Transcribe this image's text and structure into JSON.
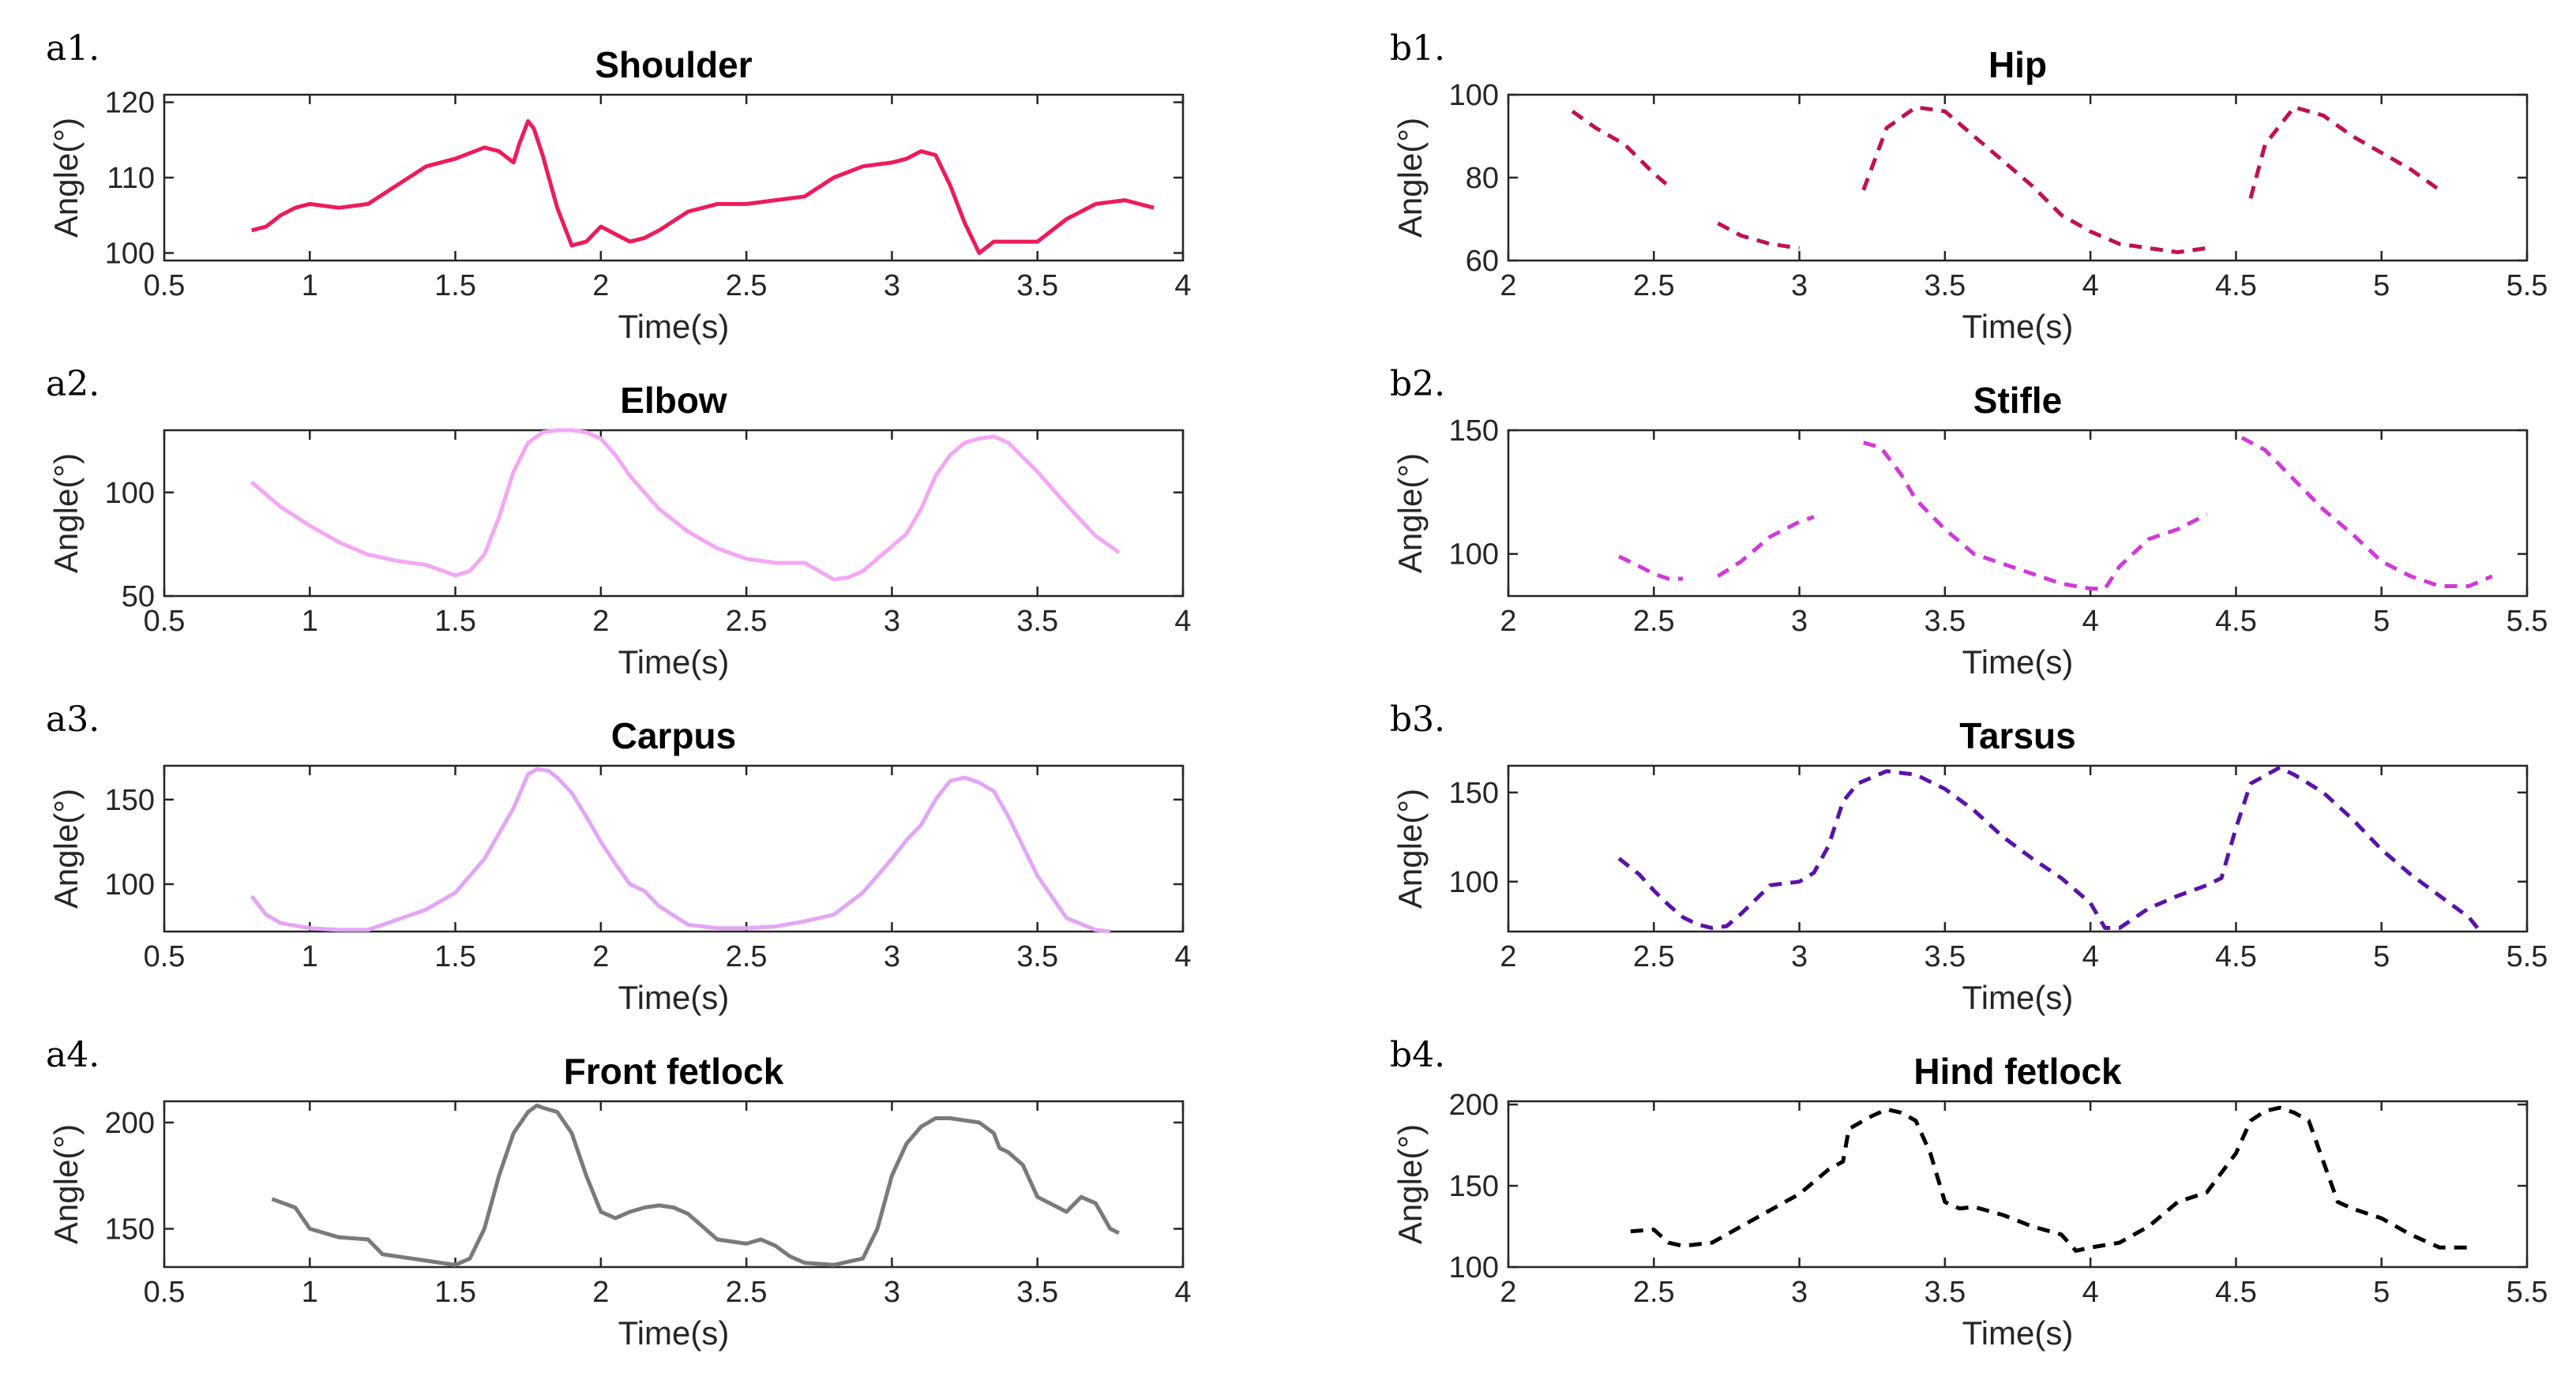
{
  "chart_data": [
    {
      "id": "a1",
      "panel_label": "a1.",
      "type": "line",
      "title": "Shoulder",
      "xlabel": "Time(s)",
      "ylabel": "Angle(°)",
      "xlim": [
        0.5,
        4
      ],
      "ylim": [
        99,
        121
      ],
      "xticks": [
        "0.5",
        "1",
        "1.5",
        "2",
        "2.5",
        "3",
        "3.5",
        "4"
      ],
      "yticks": [
        "100",
        "110",
        "120"
      ],
      "series": [
        {
          "name": "Shoulder",
          "color": "#ee1b5b",
          "style": "solid",
          "x": [
            0.8,
            0.85,
            0.9,
            0.95,
            1.0,
            1.1,
            1.2,
            1.3,
            1.4,
            1.5,
            1.6,
            1.65,
            1.7,
            1.72,
            1.75,
            1.77,
            1.8,
            1.85,
            1.9,
            1.95,
            2.0,
            2.05,
            2.1,
            2.15,
            2.2,
            2.3,
            2.4,
            2.5,
            2.6,
            2.7,
            2.8,
            2.9,
            3.0,
            3.05,
            3.1,
            3.15,
            3.2,
            3.25,
            3.3,
            3.35,
            3.4,
            3.5,
            3.6,
            3.7,
            3.8,
            3.9
          ],
          "y": [
            103,
            103.5,
            105,
            106,
            106.5,
            106,
            106.5,
            109,
            111.5,
            112.5,
            114,
            113.5,
            112,
            114.5,
            117.5,
            116.5,
            113,
            106,
            101,
            101.5,
            103.5,
            102.5,
            101.5,
            102,
            103,
            105.5,
            106.5,
            106.5,
            107,
            107.5,
            110,
            111.5,
            112,
            112.5,
            113.5,
            113,
            109,
            104,
            100,
            101.5,
            101.5,
            101.5,
            104.5,
            106.5,
            107,
            106
          ]
        }
      ]
    },
    {
      "id": "a2",
      "panel_label": "a2.",
      "type": "line",
      "title": "Elbow",
      "xlabel": "Time(s)",
      "ylabel": "Angle(°)",
      "xlim": [
        0.5,
        4
      ],
      "ylim": [
        50,
        130
      ],
      "xticks": [
        "0.5",
        "1",
        "1.5",
        "2",
        "2.5",
        "3",
        "3.5",
        "4"
      ],
      "yticks": [
        "50",
        "100"
      ],
      "series": [
        {
          "name": "Elbow",
          "color": "#f4a7f4",
          "style": "solid",
          "x": [
            0.8,
            0.9,
            1.0,
            1.1,
            1.2,
            1.3,
            1.4,
            1.5,
            1.55,
            1.6,
            1.65,
            1.7,
            1.75,
            1.8,
            1.85,
            1.9,
            1.95,
            2.0,
            2.05,
            2.1,
            2.2,
            2.3,
            2.4,
            2.5,
            2.6,
            2.7,
            2.8,
            2.85,
            2.9,
            3.0,
            3.05,
            3.1,
            3.15,
            3.2,
            3.25,
            3.3,
            3.35,
            3.4,
            3.5,
            3.6,
            3.7,
            3.78
          ],
          "y": [
            105,
            93,
            84,
            76,
            70,
            67,
            65,
            60,
            62,
            70,
            88,
            110,
            124,
            129,
            130,
            130,
            129,
            126,
            118,
            108,
            92,
            81,
            73,
            68,
            66,
            66,
            58,
            59,
            62,
            74,
            80,
            92,
            108,
            118,
            124,
            126,
            127,
            124,
            110,
            94,
            79,
            71
          ]
        }
      ]
    },
    {
      "id": "a3",
      "panel_label": "a3.",
      "type": "line",
      "title": "Carpus",
      "xlabel": "Time(s)",
      "ylabel": "Angle(°)",
      "xlim": [
        0.5,
        4
      ],
      "ylim": [
        72,
        170
      ],
      "xticks": [
        "0.5",
        "1",
        "1.5",
        "2",
        "2.5",
        "3",
        "3.5",
        "4"
      ],
      "yticks": [
        "100",
        "150"
      ],
      "series": [
        {
          "name": "Carpus",
          "color": "#e3a6f5",
          "style": "solid",
          "x": [
            0.8,
            0.85,
            0.9,
            1.0,
            1.1,
            1.2,
            1.3,
            1.4,
            1.5,
            1.6,
            1.65,
            1.7,
            1.75,
            1.78,
            1.82,
            1.85,
            1.9,
            1.95,
            2.0,
            2.05,
            2.1,
            2.15,
            2.2,
            2.3,
            2.4,
            2.5,
            2.6,
            2.7,
            2.8,
            2.9,
            3.0,
            3.05,
            3.1,
            3.15,
            3.2,
            3.25,
            3.3,
            3.35,
            3.4,
            3.5,
            3.6,
            3.7,
            3.75
          ],
          "y": [
            93,
            82,
            77,
            74,
            73,
            73,
            79,
            85,
            95,
            115,
            130,
            145,
            165,
            168,
            167,
            163,
            154,
            140,
            125,
            112,
            100,
            96,
            87,
            76,
            74,
            74,
            75,
            78,
            82,
            95,
            115,
            126,
            135,
            150,
            161,
            163,
            160,
            155,
            140,
            105,
            80,
            73,
            72
          ]
        }
      ]
    },
    {
      "id": "a4",
      "panel_label": "a4.",
      "type": "line",
      "title": "Front fetlock",
      "xlabel": "Time(s)",
      "ylabel": "Angle(°)",
      "xlim": [
        0.5,
        4
      ],
      "ylim": [
        132,
        210
      ],
      "xticks": [
        "0.5",
        "1",
        "1.5",
        "2",
        "2.5",
        "3",
        "3.5",
        "4"
      ],
      "yticks": [
        "150",
        "200"
      ],
      "series": [
        {
          "name": "Front fetlock",
          "color": "#7a7a7a",
          "style": "solid",
          "x": [
            0.87,
            0.95,
            1.0,
            1.05,
            1.1,
            1.2,
            1.25,
            1.3,
            1.4,
            1.5,
            1.55,
            1.6,
            1.65,
            1.7,
            1.75,
            1.78,
            1.8,
            1.85,
            1.9,
            1.95,
            2.0,
            2.05,
            2.1,
            2.15,
            2.2,
            2.25,
            2.3,
            2.4,
            2.5,
            2.55,
            2.6,
            2.65,
            2.7,
            2.8,
            2.9,
            2.95,
            3.0,
            3.05,
            3.1,
            3.15,
            3.2,
            3.3,
            3.35,
            3.37,
            3.4,
            3.45,
            3.5,
            3.6,
            3.65,
            3.7,
            3.75,
            3.78
          ],
          "y": [
            164,
            160,
            150,
            148,
            146,
            145,
            138,
            137,
            135,
            133,
            136,
            150,
            175,
            195,
            205,
            208,
            207,
            205,
            195,
            175,
            158,
            155,
            158,
            160,
            161,
            160,
            157,
            145,
            143,
            145,
            142,
            137,
            134,
            133,
            136,
            150,
            175,
            190,
            198,
            202,
            202,
            200,
            195,
            188,
            186,
            180,
            165,
            158,
            165,
            162,
            150,
            148
          ]
        }
      ]
    },
    {
      "id": "b1",
      "panel_label": "b1.",
      "type": "line",
      "title": "Hip",
      "xlabel": "Time(s)",
      "ylabel": "Angle(°)",
      "xlim": [
        2,
        5.5
      ],
      "ylim": [
        60,
        100
      ],
      "xticks": [
        "2",
        "2.5",
        "3",
        "3.5",
        "4",
        "4.5",
        "5",
        "5.5"
      ],
      "yticks": [
        "60",
        "80",
        "100"
      ],
      "series": [
        {
          "name": "Hip segment 1",
          "color": "#c0124a",
          "style": "dashed",
          "x": [
            2.22,
            2.3,
            2.4,
            2.5,
            2.55
          ],
          "y": [
            96,
            92,
            88,
            81,
            78
          ]
        },
        {
          "name": "Hip segment 2",
          "color": "#c0124a",
          "style": "dashed",
          "x": [
            2.72,
            2.8,
            2.9,
            3.0
          ],
          "y": [
            69,
            66,
            64,
            63
          ]
        },
        {
          "name": "Hip segment 3",
          "color": "#c0124a",
          "style": "dashed",
          "x": [
            3.22,
            3.3,
            3.4,
            3.5,
            3.6,
            3.7,
            3.8,
            3.9,
            4.0,
            4.1,
            4.2,
            4.3,
            4.4
          ],
          "y": [
            77,
            92,
            97,
            96,
            90,
            84,
            78,
            71,
            67,
            64,
            63,
            62,
            63
          ]
        },
        {
          "name": "Hip segment 4",
          "color": "#c0124a",
          "style": "dashed",
          "x": [
            4.55,
            4.6,
            4.7,
            4.8,
            4.9,
            5.0,
            5.1,
            5.2
          ],
          "y": [
            75,
            88,
            97,
            95,
            90,
            86,
            82,
            77
          ]
        }
      ]
    },
    {
      "id": "b2",
      "panel_label": "b2.",
      "type": "line",
      "title": "Stifle",
      "xlabel": "Time(s)",
      "ylabel": "Angle(°)",
      "xlim": [
        2,
        5.5
      ],
      "ylim": [
        83,
        150
      ],
      "xticks": [
        "2",
        "2.5",
        "3",
        "3.5",
        "4",
        "4.5",
        "5",
        "5.5"
      ],
      "yticks": [
        "100",
        "150"
      ],
      "series": [
        {
          "name": "Stifle segment 1",
          "color": "#d03ad8",
          "style": "dashed",
          "x": [
            2.38,
            2.45,
            2.5,
            2.55,
            2.6
          ],
          "y": [
            99,
            95,
            92,
            90,
            90
          ]
        },
        {
          "name": "Stifle segment 2",
          "color": "#d03ad8",
          "style": "dashed",
          "x": [
            2.72,
            2.8,
            2.9,
            3.0,
            3.05
          ],
          "y": [
            91,
            97,
            107,
            113,
            115
          ]
        },
        {
          "name": "Stifle segment 3",
          "color": "#d03ad8",
          "style": "dashed",
          "x": [
            3.22,
            3.28,
            3.35,
            3.4,
            3.5,
            3.6,
            3.7,
            3.8,
            3.9,
            4.0,
            4.05,
            4.1,
            4.2,
            4.3,
            4.4
          ],
          "y": [
            145,
            143,
            132,
            122,
            110,
            100,
            96,
            92,
            88,
            86,
            86,
            95,
            106,
            110,
            116
          ]
        },
        {
          "name": "Stifle segment 4",
          "color": "#d03ad8",
          "style": "dashed",
          "x": [
            4.52,
            4.6,
            4.7,
            4.8,
            4.9,
            5.0,
            5.1,
            5.2,
            5.3,
            5.38
          ],
          "y": [
            147,
            142,
            130,
            118,
            108,
            97,
            91,
            87,
            87,
            91
          ]
        }
      ]
    },
    {
      "id": "b3",
      "panel_label": "b3.",
      "type": "line",
      "title": "Tarsus",
      "xlabel": "Time(s)",
      "ylabel": "Angle(°)",
      "xlim": [
        2,
        5.5
      ],
      "ylim": [
        72,
        165
      ],
      "xticks": [
        "2",
        "2.5",
        "3",
        "3.5",
        "4",
        "4.5",
        "5",
        "5.5"
      ],
      "yticks": [
        "100",
        "150"
      ],
      "series": [
        {
          "name": "Tarsus",
          "color": "#5b12a8",
          "style": "dashed",
          "x": [
            2.38,
            2.45,
            2.5,
            2.55,
            2.6,
            2.65,
            2.7,
            2.75,
            2.8,
            2.85,
            2.9,
            3.0,
            3.05,
            3.1,
            3.15,
            3.2,
            3.3,
            3.4,
            3.5,
            3.6,
            3.7,
            3.8,
            3.9,
            4.0,
            4.05,
            4.1,
            4.2,
            4.3,
            4.4,
            4.45,
            4.5,
            4.55,
            4.65,
            4.7,
            4.8,
            4.9,
            5.0,
            5.1,
            5.2,
            5.3,
            5.33
          ],
          "y": [
            113,
            104,
            95,
            87,
            80,
            76,
            74,
            75,
            82,
            90,
            98,
            100,
            105,
            120,
            145,
            155,
            162,
            160,
            152,
            140,
            125,
            113,
            102,
            88,
            74,
            74,
            85,
            92,
            98,
            102,
            130,
            155,
            164,
            160,
            150,
            135,
            118,
            104,
            92,
            80,
            74
          ]
        }
      ]
    },
    {
      "id": "b4",
      "panel_label": "b4.",
      "type": "line",
      "title": "Hind fetlock",
      "xlabel": "Time(s)",
      "ylabel": "Angle(°)",
      "xlim": [
        2,
        5.5
      ],
      "ylim": [
        100,
        202
      ],
      "xticks": [
        "2",
        "2.5",
        "3",
        "3.5",
        "4",
        "4.5",
        "5",
        "5.5"
      ],
      "yticks": [
        "100",
        "150",
        "200"
      ],
      "series": [
        {
          "name": "Hind fetlock",
          "color": "#000000",
          "style": "dashed",
          "x": [
            2.42,
            2.5,
            2.55,
            2.6,
            2.7,
            2.8,
            2.9,
            3.0,
            3.1,
            3.15,
            3.17,
            3.2,
            3.25,
            3.3,
            3.35,
            3.4,
            3.45,
            3.5,
            3.55,
            3.6,
            3.7,
            3.8,
            3.9,
            3.95,
            4.0,
            4.1,
            4.2,
            4.3,
            4.4,
            4.5,
            4.55,
            4.6,
            4.65,
            4.7,
            4.75,
            4.8,
            4.85,
            4.9,
            5.0,
            5.1,
            5.2,
            5.3
          ],
          "y": [
            122,
            123,
            115,
            113,
            115,
            125,
            135,
            145,
            160,
            165,
            185,
            188,
            193,
            197,
            195,
            190,
            170,
            140,
            136,
            137,
            132,
            125,
            120,
            110,
            112,
            115,
            125,
            140,
            146,
            170,
            190,
            196,
            198,
            195,
            190,
            165,
            140,
            136,
            130,
            120,
            112,
            112
          ]
        }
      ]
    }
  ]
}
